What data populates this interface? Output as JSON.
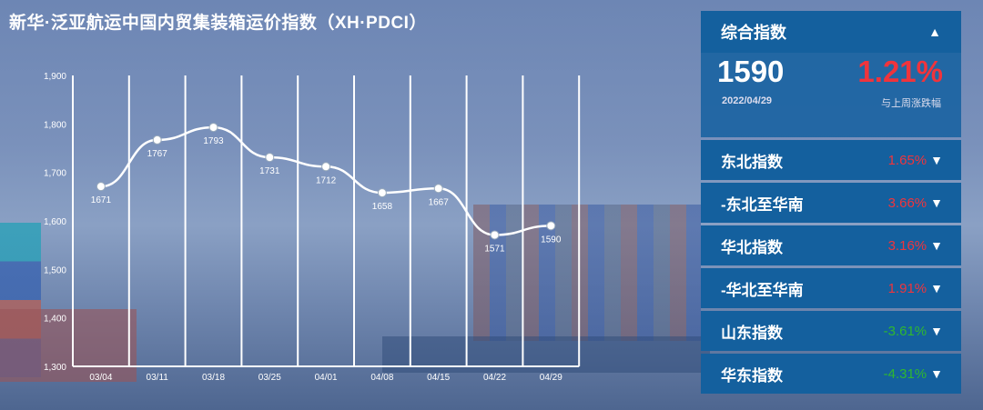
{
  "title": "新华·泛亚航运中国内贸集装箱运价指数（XH·PDCI）",
  "chart_data": {
    "type": "line",
    "smooth": true,
    "categories": [
      "03/04",
      "03/11",
      "03/18",
      "03/25",
      "04/01",
      "04/08",
      "04/15",
      "04/22",
      "04/29"
    ],
    "values": [
      1671,
      1767,
      1793,
      1731,
      1712,
      1658,
      1667,
      1571,
      1590
    ],
    "ylim": [
      1300,
      1900
    ],
    "yticks": [
      "1,300",
      "1,400",
      "1,500",
      "1,600",
      "1,700",
      "1,800",
      "1,900"
    ],
    "grid": "vertical",
    "line_color": "#ffffff"
  },
  "panel": {
    "header": "综合指数",
    "header_icon": "chevron-up",
    "value": "1590",
    "date": "2022/04/29",
    "change": "1.21%",
    "change_label": "与上周涨跌幅",
    "rows": [
      {
        "label": "东北指数",
        "value": "1.65%",
        "color": "#f0343c"
      },
      {
        "label": "-东北至华南",
        "value": "3.66%",
        "color": "#f0343c"
      },
      {
        "label": "华北指数",
        "value": "3.16%",
        "color": "#f0343c"
      },
      {
        "label": "-华北至华南",
        "value": "1.91%",
        "color": "#f0343c"
      },
      {
        "label": "山东指数",
        "value": "-3.61%",
        "color": "#2fb82f"
      },
      {
        "label": "华东指数",
        "value": "-4.31%",
        "color": "#2fb82f"
      }
    ]
  }
}
